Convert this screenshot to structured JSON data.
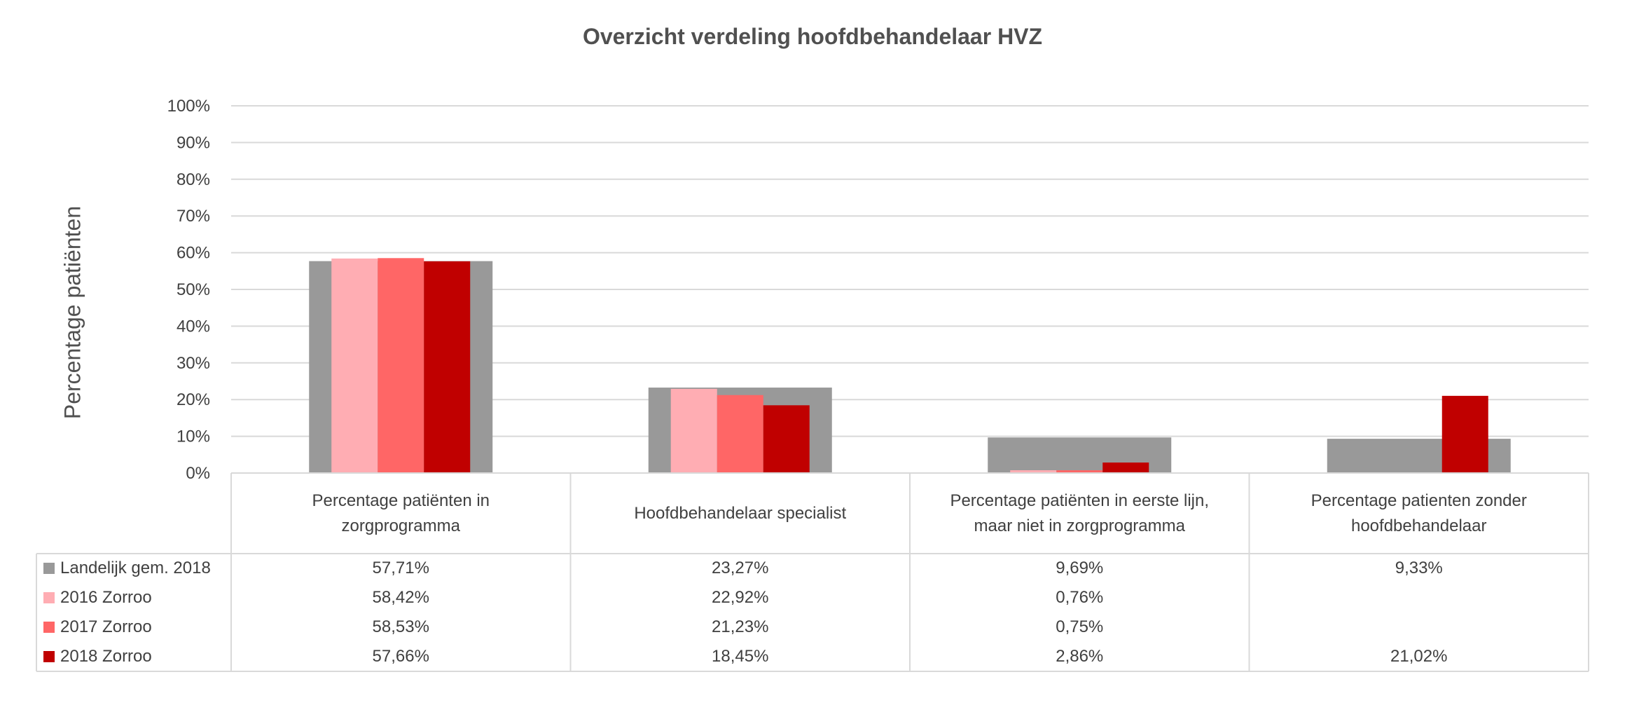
{
  "chart_data": {
    "type": "bar",
    "title": "Overzicht verdeling hoofdbehandelaar HVZ",
    "ylabel": "Percentage patiënten",
    "xlabel": "",
    "ylim": [
      0,
      100
    ],
    "yticks": [
      "0%",
      "10%",
      "20%",
      "30%",
      "40%",
      "50%",
      "60%",
      "70%",
      "80%",
      "90%",
      "100%"
    ],
    "categories": [
      "Percentage patiënten in zorgprogramma",
      "Hoofdbehandelaar specialist",
      "Percentage patiënten in eerste lijn, maar niet in zorgprogramma",
      "Percentage patienten zonder hoofdbehandelaar"
    ],
    "grid": true,
    "legend": "data-table",
    "background_series": {
      "name": "Landelijk gem. 2018",
      "color": "#999999",
      "values": [
        57.71,
        23.27,
        9.69,
        9.33
      ],
      "labels": [
        "57,71%",
        "23,27%",
        "9,69%",
        "9,33%"
      ]
    },
    "series": [
      {
        "name": "2016 Zorroo",
        "color": "#FFADB3",
        "values": [
          58.42,
          22.92,
          0.76,
          null
        ],
        "labels": [
          "58,42%",
          "22,92%",
          "0,76%",
          ""
        ]
      },
      {
        "name": "2017 Zorroo",
        "color": "#FF6666",
        "values": [
          58.53,
          21.23,
          0.75,
          null
        ],
        "labels": [
          "58,53%",
          "21,23%",
          "0,75%",
          ""
        ]
      },
      {
        "name": "2018 Zorroo",
        "color": "#C00000",
        "values": [
          57.66,
          18.45,
          2.86,
          21.02
        ],
        "labels": [
          "57,66%",
          "18,45%",
          "2,86%",
          "21,02%"
        ]
      }
    ]
  }
}
